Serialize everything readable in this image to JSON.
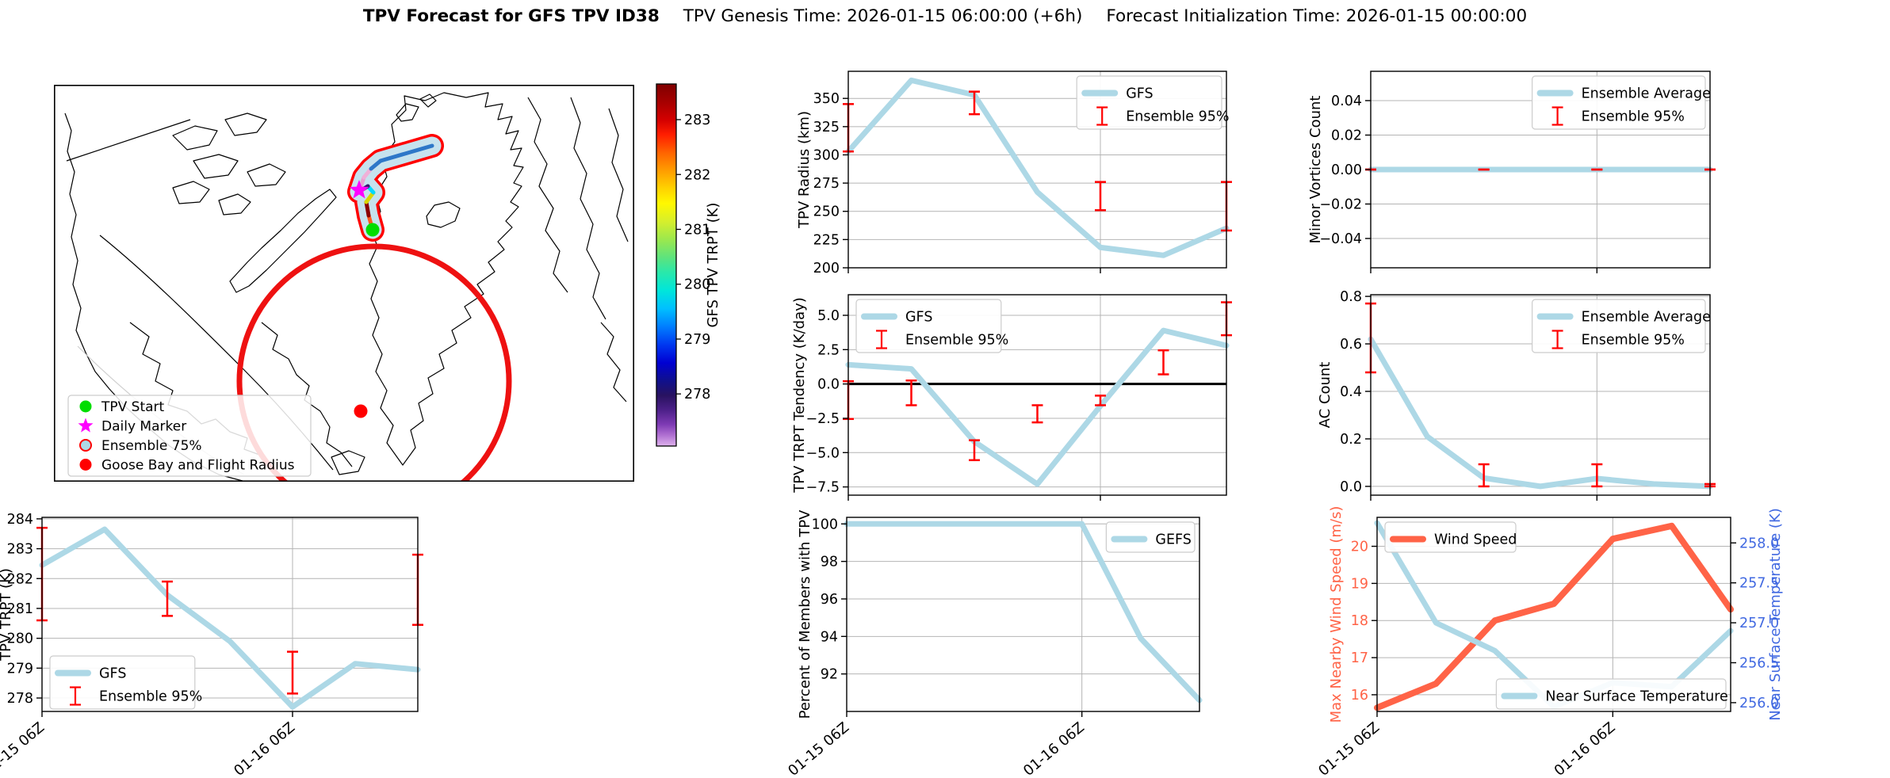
{
  "title": {
    "main": "TPV Forecast for GFS TPV ID38",
    "genesis": "TPV Genesis Time: 2026-01-15 06:00:00 (+6h)",
    "init": "Forecast Initialization Time: 2026-01-15 00:00:00"
  },
  "map": {
    "legend": [
      {
        "marker": "dot",
        "color": "#00dd00",
        "label": "TPV Start"
      },
      {
        "marker": "star",
        "color": "#ff00ff",
        "label": "Daily Marker"
      },
      {
        "marker": "circle-outline",
        "color": "#add8e6",
        "edge": "#ff0000",
        "label": "Ensemble 75%"
      },
      {
        "marker": "dot",
        "color": "#ff0000",
        "label": "Goose Bay and Flight Radius"
      }
    ],
    "colorbar": {
      "label": "GFS TPV TRPT (K)",
      "range": [
        277.05,
        283.65
      ],
      "ticks": [
        {
          "v": 283,
          "label": "283"
        },
        {
          "v": 282,
          "label": "282"
        },
        {
          "v": 281,
          "label": "281"
        },
        {
          "v": 280,
          "label": "280"
        },
        {
          "v": 279,
          "label": "279"
        },
        {
          "v": 278,
          "label": "278"
        }
      ],
      "gradient": [
        [
          "0",
          "#7f0000"
        ],
        [
          "0.05",
          "#a60000"
        ],
        [
          "0.1",
          "#d40000"
        ],
        [
          "0.14",
          "#ff1e00"
        ],
        [
          "0.19",
          "#ff6400"
        ],
        [
          "0.24",
          "#ff9e00"
        ],
        [
          "0.29",
          "#ffd400"
        ],
        [
          "0.33",
          "#fff800"
        ],
        [
          "0.38",
          "#d6ef2c"
        ],
        [
          "0.43",
          "#9be84e"
        ],
        [
          "0.48",
          "#5ce37e"
        ],
        [
          "0.52",
          "#2ae8aa"
        ],
        [
          "0.57",
          "#00e6da"
        ],
        [
          "0.62",
          "#00c0ff"
        ],
        [
          "0.67",
          "#007eff"
        ],
        [
          "0.72",
          "#0038f0"
        ],
        [
          "0.77",
          "#0000d2"
        ],
        [
          "0.82",
          "#10108c"
        ],
        [
          "0.86",
          "#281260"
        ],
        [
          "0.9",
          "#4c2088"
        ],
        [
          "0.94",
          "#7e3ab4"
        ],
        [
          "0.97",
          "#b070d2"
        ],
        [
          "1",
          "#deb2ec"
        ]
      ]
    },
    "track": {
      "outline": "#ff0000",
      "fill": "#c6e2ee",
      "segment_colors": [
        "#ff5a1e",
        "#8b0000",
        "#d8d800",
        "#00d8ff",
        "#3d1470",
        "#e8a0d0",
        "#f0b0d8",
        "#2e77c8",
        "#2e77c8"
      ]
    }
  },
  "x_axis": {
    "n_points": 7,
    "gridline_index": 4,
    "ticklabels": [
      {
        "i": 0,
        "label": "01-15 06Z"
      },
      {
        "i": 4,
        "label": "01-16 06Z"
      }
    ]
  },
  "colors": {
    "gfs_line": "#add8e6",
    "error_bar": "#ff0000",
    "wind": "#ff6347",
    "temp_axis": "#4169e1",
    "grid": "#b4b4b4"
  },
  "chart_data": [
    {
      "id": "tpv_radius",
      "type": "line",
      "axes": {
        "left": {
          "label": "TPV Radius (km)",
          "color": "#000000",
          "ylim": [
            200,
            374
          ],
          "ticks": [
            {
              "v": 200,
              "label": "200"
            },
            {
              "v": 225,
              "label": "225"
            },
            {
              "v": 250,
              "label": "250"
            },
            {
              "v": 275,
              "label": "275"
            },
            {
              "v": 300,
              "label": "300"
            },
            {
              "v": 325,
              "label": "325"
            },
            {
              "v": 350,
              "label": "350"
            }
          ]
        }
      },
      "series": [
        {
          "name": "GFS",
          "axis": "left",
          "color": "#add8e6",
          "width": 7,
          "values": [
            303,
            366,
            353,
            267,
            218,
            211,
            235
          ]
        }
      ],
      "error_bars": {
        "name": "Ensemble 95%",
        "color": "#ff0000",
        "points": [
          [
            0,
            303,
            345
          ],
          [
            2,
            336,
            356
          ],
          [
            4,
            251,
            276
          ],
          [
            6,
            233,
            276
          ]
        ]
      },
      "legends": [
        {
          "pos": "tr",
          "entries": [
            {
              "glyph": "line",
              "color": "#add8e6",
              "label": "GFS"
            },
            {
              "glyph": "errorbar",
              "color": "#ff0000",
              "label": "Ensemble 95%"
            }
          ]
        }
      ],
      "zero_line": false,
      "show_xlabels": false
    },
    {
      "id": "minor_vortices",
      "type": "line",
      "axes": {
        "left": {
          "label": "Minor Vortices Count",
          "color": "#000000",
          "ylim": [
            -0.057,
            0.057
          ],
          "ticks": [
            {
              "v": -0.04,
              "label": "−0.04"
            },
            {
              "v": -0.02,
              "label": "−0.02"
            },
            {
              "v": 0,
              "label": "0.00"
            },
            {
              "v": 0.02,
              "label": "0.02"
            },
            {
              "v": 0.04,
              "label": "0.04"
            }
          ]
        }
      },
      "series": [
        {
          "name": "Ensemble Average",
          "axis": "left",
          "color": "#add8e6",
          "width": 7,
          "values": [
            0,
            0,
            0,
            0,
            0,
            0,
            0
          ]
        }
      ],
      "error_bars": {
        "name": "Ensemble 95%",
        "color": "#ff0000",
        "points": [
          [
            0,
            0,
            0
          ],
          [
            2,
            0,
            0
          ],
          [
            4,
            0,
            0
          ],
          [
            6,
            0,
            0
          ]
        ]
      },
      "legends": [
        {
          "pos": "tr",
          "entries": [
            {
              "glyph": "line",
              "color": "#add8e6",
              "label": "Ensemble Average"
            },
            {
              "glyph": "errorbar",
              "color": "#ff0000",
              "label": "Ensemble 95%"
            }
          ]
        }
      ],
      "zero_line": false,
      "show_xlabels": false
    },
    {
      "id": "trpt_tendency",
      "type": "line",
      "axes": {
        "left": {
          "label": "TPV TRPT Tendency (K/day)",
          "color": "#000000",
          "ylim": [
            -8.1,
            6.5
          ],
          "ticks": [
            {
              "v": -7.5,
              "label": "−7.5"
            },
            {
              "v": -5,
              "label": "−5.0"
            },
            {
              "v": -2.5,
              "label": "−2.5"
            },
            {
              "v": 0,
              "label": "0.0"
            },
            {
              "v": 2.5,
              "label": "2.5"
            },
            {
              "v": 5,
              "label": "5.0"
            }
          ]
        }
      },
      "series": [
        {
          "name": "GFS",
          "axis": "left",
          "color": "#add8e6",
          "width": 7,
          "values": [
            1.4,
            1.1,
            -4.2,
            -7.3,
            -1.6,
            3.9,
            2.8
          ]
        }
      ],
      "error_bars": {
        "name": "Ensemble 95%",
        "color": "#ff0000",
        "points": [
          [
            0,
            -2.55,
            0.2
          ],
          [
            1,
            -1.55,
            0.25
          ],
          [
            2,
            -5.55,
            -4.1
          ],
          [
            3,
            -2.8,
            -1.55
          ],
          [
            4,
            -1.55,
            -0.85
          ],
          [
            5,
            0.7,
            2.45
          ],
          [
            6,
            3.55,
            5.95
          ]
        ]
      },
      "legends": [
        {
          "pos": "tl",
          "entries": [
            {
              "glyph": "line",
              "color": "#add8e6",
              "label": "GFS"
            },
            {
              "glyph": "errorbar",
              "color": "#ff0000",
              "label": "Ensemble 95%"
            }
          ]
        }
      ],
      "zero_line": true,
      "show_xlabels": false
    },
    {
      "id": "ac_count",
      "type": "line",
      "axes": {
        "left": {
          "label": "AC Count",
          "color": "#000000",
          "ylim": [
            -0.037,
            0.807
          ],
          "ticks": [
            {
              "v": 0,
              "label": "0.0"
            },
            {
              "v": 0.2,
              "label": "0.2"
            },
            {
              "v": 0.4,
              "label": "0.4"
            },
            {
              "v": 0.6,
              "label": "0.6"
            },
            {
              "v": 0.8,
              "label": "0.8"
            }
          ]
        }
      },
      "series": [
        {
          "name": "Ensemble Average",
          "axis": "left",
          "color": "#add8e6",
          "width": 7,
          "values": [
            0.62,
            0.21,
            0.035,
            0.0,
            0.033,
            0.01,
            0.0
          ]
        }
      ],
      "error_bars": {
        "name": "Ensemble 95%",
        "color": "#ff0000",
        "points": [
          [
            0,
            0.48,
            0.77
          ],
          [
            2,
            0,
            0.093
          ],
          [
            4,
            0,
            0.093
          ],
          [
            6,
            0,
            0.01
          ]
        ]
      },
      "legends": [
        {
          "pos": "tr",
          "entries": [
            {
              "glyph": "line",
              "color": "#add8e6",
              "label": "Ensemble Average"
            },
            {
              "glyph": "errorbar",
              "color": "#ff0000",
              "label": "Ensemble 95%"
            }
          ]
        }
      ],
      "zero_line": false,
      "show_xlabels": false
    },
    {
      "id": "tpv_trpt",
      "type": "line",
      "axes": {
        "left": {
          "label": "TPV TRPT (K)",
          "color": "#000000",
          "ylim": [
            277.55,
            284.05
          ],
          "ticks": [
            {
              "v": 278,
              "label": "278"
            },
            {
              "v": 279,
              "label": "279"
            },
            {
              "v": 280,
              "label": "280"
            },
            {
              "v": 281,
              "label": "281"
            },
            {
              "v": 282,
              "label": "282"
            },
            {
              "v": 283,
              "label": "283"
            },
            {
              "v": 284,
              "label": "284"
            }
          ]
        }
      },
      "series": [
        {
          "name": "GFS",
          "axis": "left",
          "color": "#add8e6",
          "width": 7,
          "values": [
            282.45,
            283.65,
            281.45,
            279.9,
            277.7,
            279.15,
            278.95
          ]
        }
      ],
      "error_bars": {
        "name": "Ensemble 95%",
        "color": "#ff0000",
        "points": [
          [
            0,
            280.6,
            283.7
          ],
          [
            2,
            280.75,
            281.9
          ],
          [
            4,
            278.15,
            279.55
          ],
          [
            6,
            280.45,
            282.8
          ]
        ]
      },
      "legends": [
        {
          "pos": "bl",
          "entries": [
            {
              "glyph": "line",
              "color": "#add8e6",
              "label": "GFS"
            },
            {
              "glyph": "errorbar",
              "color": "#ff0000",
              "label": "Ensemble 95%"
            }
          ]
        }
      ],
      "zero_line": false,
      "show_xlabels": true
    },
    {
      "id": "percent_members",
      "type": "line",
      "axes": {
        "left": {
          "label": "Percent of Members with TPV",
          "color": "#000000",
          "ylim": [
            90.0,
            100.35
          ],
          "ticks": [
            {
              "v": 92,
              "label": "92"
            },
            {
              "v": 94,
              "label": "94"
            },
            {
              "v": 96,
              "label": "96"
            },
            {
              "v": 98,
              "label": "98"
            },
            {
              "v": 100,
              "label": "100"
            }
          ]
        }
      },
      "series": [
        {
          "name": "GEFS",
          "axis": "left",
          "color": "#add8e6",
          "width": 7,
          "values": [
            100,
            100,
            100,
            100,
            100,
            93.9,
            90.6
          ]
        }
      ],
      "legends": [
        {
          "pos": "tr",
          "entries": [
            {
              "glyph": "line",
              "color": "#add8e6",
              "label": "GEFS"
            }
          ]
        }
      ],
      "zero_line": false,
      "show_xlabels": true
    },
    {
      "id": "wind_temp",
      "type": "line",
      "axes": {
        "left": {
          "label": "Max Nearby Wind Speed (m/s)",
          "color": "#ff6347",
          "ylim": [
            15.55,
            20.78
          ],
          "ticks": [
            {
              "v": 16,
              "label": "16"
            },
            {
              "v": 17,
              "label": "17"
            },
            {
              "v": 18,
              "label": "18"
            },
            {
              "v": 19,
              "label": "19"
            },
            {
              "v": 20,
              "label": "20"
            }
          ]
        },
        "right": {
          "label": "Near Surface Temperature (K)",
          "color": "#4169e1",
          "ylim": [
            255.89,
            258.32
          ],
          "ticks": [
            {
              "v": 256,
              "label": "256.0"
            },
            {
              "v": 256.5,
              "label": "256.5"
            },
            {
              "v": 257,
              "label": "257.0"
            },
            {
              "v": 257.5,
              "label": "257.5"
            },
            {
              "v": 258,
              "label": "258.0"
            }
          ]
        }
      },
      "series": [
        {
          "name": "Wind Speed",
          "axis": "left",
          "color": "#ff6347",
          "width": 8,
          "values": [
            15.65,
            16.3,
            18.0,
            18.45,
            20.2,
            20.55,
            18.3
          ]
        },
        {
          "name": "Near Surface Temperature",
          "axis": "right",
          "color": "#add8e6",
          "width": 7,
          "values": [
            258.25,
            257.0,
            256.65,
            255.95,
            256.25,
            256.2,
            256.9
          ]
        }
      ],
      "legends": [
        {
          "pos": "tl",
          "entries": [
            {
              "glyph": "line",
              "color": "#ff6347",
              "label": "Wind Speed"
            }
          ]
        },
        {
          "pos": "br",
          "entries": [
            {
              "glyph": "line",
              "color": "#add8e6",
              "label": "Near Surface Temperature"
            }
          ]
        }
      ],
      "zero_line": false,
      "show_xlabels": true
    }
  ]
}
